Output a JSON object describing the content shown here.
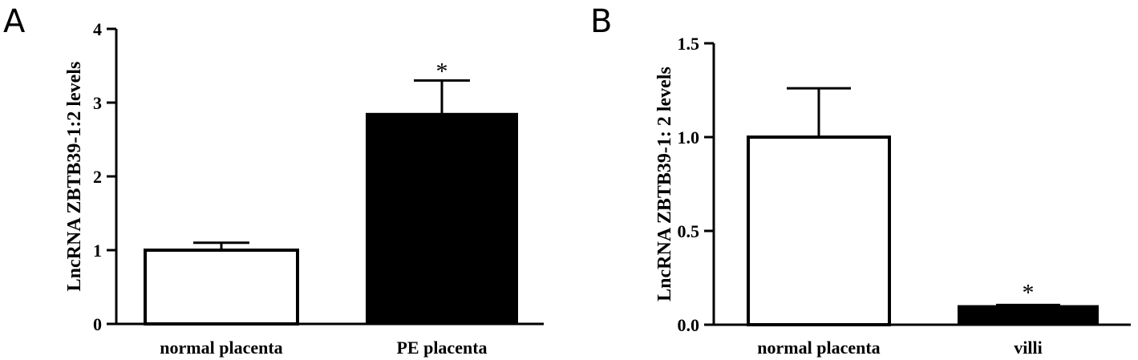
{
  "chart_data": [
    {
      "panel": "A",
      "type": "bar",
      "categories": [
        "normal placenta",
        "PE placenta"
      ],
      "values": [
        1.0,
        2.85
      ],
      "errors": [
        0.1,
        0.45
      ],
      "colors": [
        "#ffffff",
        "#000000"
      ],
      "significance": [
        "",
        "*"
      ],
      "ylabel": "LncRNA ZBTB39-1:2 levels",
      "ylim": [
        0,
        4
      ],
      "yticks": [
        "0",
        "1",
        "2",
        "3",
        "4"
      ],
      "ytick_values": [
        0,
        1,
        2,
        3,
        4
      ]
    },
    {
      "panel": "B",
      "type": "bar",
      "categories": [
        "normal placenta",
        "villi"
      ],
      "values": [
        1.0,
        0.1
      ],
      "errors": [
        0.26,
        0.005
      ],
      "colors": [
        "#ffffff",
        "#000000"
      ],
      "significance": [
        "",
        "*"
      ],
      "ylabel": "LncRNA ZBTB39-1:  2 levels",
      "ylim": [
        0,
        1.5
      ],
      "yticks": [
        "0.0",
        "0.5",
        "1.0",
        "1.5"
      ],
      "ytick_values": [
        0,
        0.5,
        1.0,
        1.5
      ]
    }
  ]
}
